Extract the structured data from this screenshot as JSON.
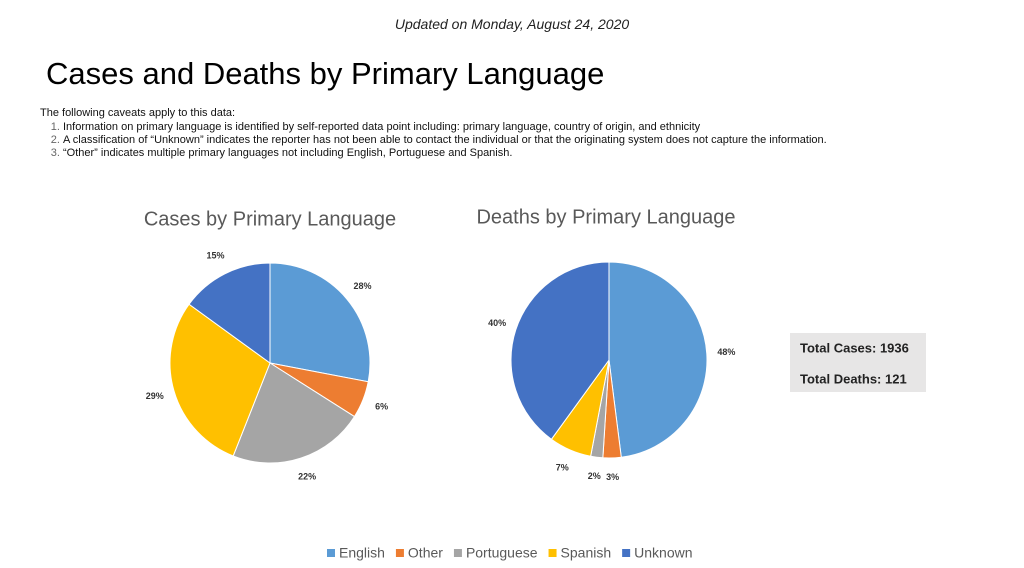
{
  "header": {
    "updated": "Updated on Monday, August 24, 2020"
  },
  "title": "Cases and Deaths by Primary Language",
  "caveats": {
    "intro": "The following caveats apply to this data:",
    "items": [
      "Information on primary language is identified by self-reported data point including: primary language, country of origin, and ethnicity",
      "A classification of “Unknown” indicates the reporter has not been able to contact the individual or that the originating system does not capture the information.",
      "“Other” indicates multiple primary languages not including English, Portuguese and Spanish."
    ]
  },
  "chart_data": [
    {
      "type": "pie",
      "title": "Cases by Primary Language",
      "categories": [
        "English",
        "Other",
        "Portuguese",
        "Spanish",
        "Unknown"
      ],
      "values": [
        28,
        6,
        22,
        29,
        15
      ],
      "value_labels": [
        "28%",
        "6%",
        "22%",
        "29%",
        "15%"
      ],
      "colors": [
        "#5b9bd5",
        "#ed7d31",
        "#a5a5a5",
        "#ffc000",
        "#4472c4"
      ]
    },
    {
      "type": "pie",
      "title": "Deaths by Primary Language",
      "categories": [
        "English",
        "Other",
        "Portuguese",
        "Spanish",
        "Unknown"
      ],
      "values": [
        48,
        3,
        2,
        7,
        40
      ],
      "value_labels": [
        "48%",
        "3%",
        "2%",
        "7%",
        "40%"
      ],
      "colors": [
        "#5b9bd5",
        "#ed7d31",
        "#a5a5a5",
        "#ffc000",
        "#4472c4"
      ]
    }
  ],
  "totals": [
    "Total Cases: 1936",
    "Total Deaths: 121"
  ]
}
